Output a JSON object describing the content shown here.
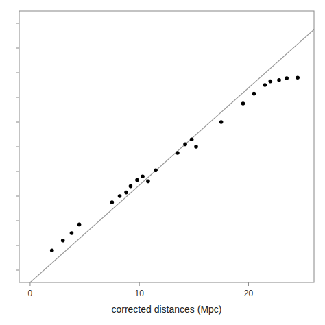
{
  "chart_data": {
    "type": "scatter",
    "xlabel": "corrected distances (Mpc)",
    "series": [
      {
        "type": "line",
        "color": "#999999",
        "x": [
          0,
          26
        ],
        "values": [
          -100,
          1950
        ]
      },
      {
        "type": "scatter",
        "color": "#000000",
        "x": [
          2.0,
          3.0,
          3.8,
          4.5,
          7.5,
          8.2,
          8.8,
          9.2,
          9.8,
          10.3,
          10.8,
          11.5,
          13.5,
          14.2,
          14.8,
          15.2,
          17.5,
          19.5,
          20.5,
          21.5,
          22.0,
          22.8,
          23.5,
          24.5
        ],
        "values": [
          160,
          240,
          300,
          370,
          550,
          600,
          630,
          680,
          730,
          760,
          720,
          810,
          950,
          1020,
          1060,
          1000,
          1200,
          1350,
          1430,
          1500,
          1530,
          1540,
          1555,
          1560
        ]
      }
    ],
    "xlim": [
      -1,
      26
    ],
    "ylim": [
      -100,
      2100
    ],
    "xticks": [
      0,
      10,
      20
    ],
    "yticks": [
      0,
      200,
      400,
      600,
      800,
      1000,
      1200,
      1400,
      1600,
      1800,
      2000
    ],
    "tick_labels": "x",
    "grid": false
  }
}
